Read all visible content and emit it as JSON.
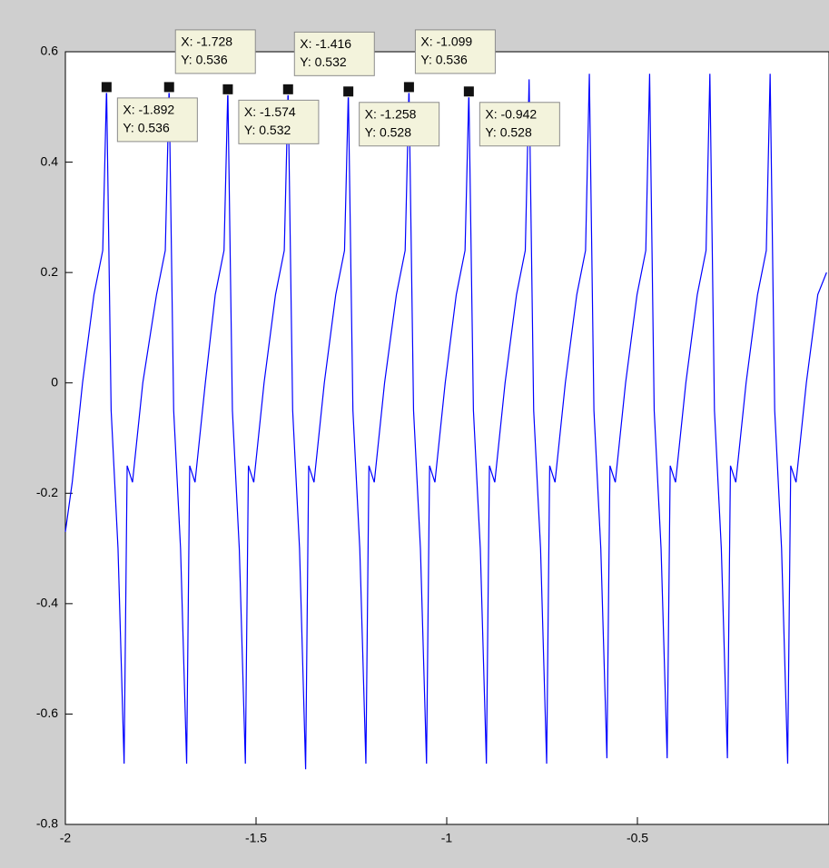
{
  "chart_data": {
    "type": "line",
    "x": [
      -2,
      -1.982,
      -1.955,
      -1.925,
      -1.902,
      -1.892,
      -1.88,
      -1.862,
      -1.846,
      -1.838,
      -1.824,
      -1.797,
      -1.761,
      -1.738,
      -1.728,
      -1.716,
      -1.698,
      -1.682,
      -1.674,
      -1.66,
      -1.633,
      -1.607,
      -1.584,
      -1.574,
      -1.562,
      -1.544,
      -1.528,
      -1.52,
      -1.506,
      -1.479,
      -1.449,
      -1.426,
      -1.416,
      -1.404,
      -1.386,
      -1.37,
      -1.362,
      -1.348,
      -1.321,
      -1.291,
      -1.268,
      -1.258,
      -1.246,
      -1.228,
      -1.212,
      -1.204,
      -1.19,
      -1.163,
      -1.132,
      -1.109,
      -1.099,
      -1.087,
      -1.069,
      -1.053,
      -1.045,
      -1.031,
      -1.004,
      -0.975,
      -0.952,
      -0.942,
      -0.93,
      -0.912,
      -0.896,
      -0.888,
      -0.874,
      -0.847,
      -0.817,
      -0.794,
      -0.784,
      -0.772,
      -0.754,
      -0.738,
      -0.73,
      -0.716,
      -0.689,
      -0.659,
      -0.636,
      -0.626,
      -0.614,
      -0.596,
      -0.58,
      -0.572,
      -0.558,
      -0.531,
      -0.501,
      -0.478,
      -0.468,
      -0.456,
      -0.438,
      -0.422,
      -0.414,
      -0.4,
      -0.373,
      -0.343,
      -0.32,
      -0.31,
      -0.298,
      -0.28,
      -0.264,
      -0.256,
      -0.242,
      -0.215,
      -0.185,
      -0.162,
      -0.152,
      -0.14,
      -0.122,
      -0.106,
      -0.098,
      -0.084,
      -0.057,
      -0.027,
      -0.004
    ],
    "series": [
      {
        "color": "#0000ff",
        "values": [
          -0.27,
          -0.18,
          0.0,
          0.16,
          0.24,
          0.536,
          -0.05,
          -0.3,
          -0.69,
          -0.15,
          -0.18,
          0.0,
          0.16,
          0.24,
          0.536,
          -0.05,
          -0.3,
          -0.69,
          -0.15,
          -0.18,
          0.0,
          0.16,
          0.24,
          0.532,
          -0.05,
          -0.3,
          -0.69,
          -0.15,
          -0.18,
          0.0,
          0.16,
          0.24,
          0.532,
          -0.05,
          -0.3,
          -0.7,
          -0.15,
          -0.18,
          0.0,
          0.16,
          0.24,
          0.528,
          -0.05,
          -0.3,
          -0.69,
          -0.15,
          -0.18,
          0.0,
          0.16,
          0.24,
          0.536,
          -0.05,
          -0.3,
          -0.69,
          -0.15,
          -0.18,
          0.0,
          0.16,
          0.24,
          0.528,
          -0.05,
          -0.3,
          -0.69,
          -0.15,
          -0.18,
          0.0,
          0.16,
          0.24,
          0.55,
          -0.05,
          -0.3,
          -0.69,
          -0.15,
          -0.18,
          0.0,
          0.16,
          0.24,
          0.56,
          -0.05,
          -0.3,
          -0.68,
          -0.15,
          -0.18,
          0.0,
          0.16,
          0.24,
          0.56,
          -0.05,
          -0.3,
          -0.68,
          -0.15,
          -0.18,
          0.0,
          0.16,
          0.24,
          0.56,
          -0.05,
          -0.3,
          -0.68,
          -0.15,
          -0.18,
          0.0,
          0.16,
          0.24,
          0.56,
          -0.05,
          -0.3,
          -0.69,
          -0.15,
          -0.18,
          0.0,
          0.16,
          0.2
        ]
      }
    ],
    "xlim": [
      -2,
      0
    ],
    "xticks": [
      -2,
      -1.5,
      -1,
      -0.5
    ],
    "ylim": [
      -0.8,
      0.6
    ],
    "yticks": [
      -0.8,
      -0.6,
      -0.4,
      -0.2,
      0,
      0.2,
      0.4,
      0.6
    ],
    "grid": false,
    "datatips": [
      {
        "x": -1.892,
        "y": 0.536,
        "x_label": "X: -1.892",
        "y_label": "Y: 0.536"
      },
      {
        "x": -1.728,
        "y": 0.536,
        "x_label": "X: -1.728",
        "y_label": "Y: 0.536"
      },
      {
        "x": -1.574,
        "y": 0.532,
        "x_label": "X: -1.574",
        "y_label": "Y: 0.532"
      },
      {
        "x": -1.416,
        "y": 0.532,
        "x_label": "X: -1.416",
        "y_label": "Y: 0.532"
      },
      {
        "x": -1.258,
        "y": 0.528,
        "x_label": "X: -1.258",
        "y_label": "Y: 0.528"
      },
      {
        "x": -1.099,
        "y": 0.536,
        "x_label": "X: -1.099",
        "y_label": "Y: 0.536"
      },
      {
        "x": -0.942,
        "y": 0.528,
        "x_label": "X: -0.942",
        "y_label": "Y: 0.528"
      }
    ]
  }
}
